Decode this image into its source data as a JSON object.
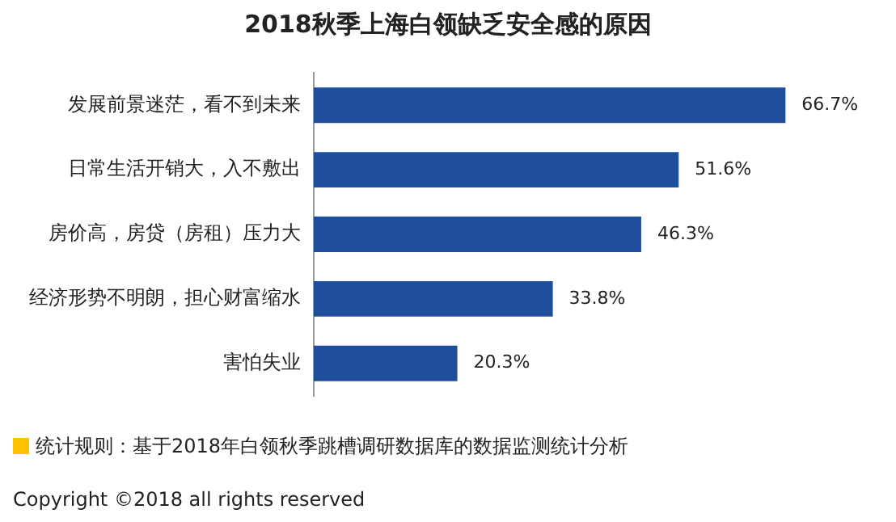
{
  "chart_data": {
    "type": "bar",
    "orientation": "horizontal",
    "title": "2018秋季上海白领缺乏安全感的原因",
    "categories": [
      "发展前景迷茫，看不到未来",
      "日常生活开销大，入不敷出",
      "房价高，房贷（房租）压力大",
      "经济形势不明朗，担心财富缩水",
      "害怕失业"
    ],
    "values": [
      66.7,
      51.6,
      46.3,
      33.8,
      20.3
    ],
    "value_labels": [
      "66.7%",
      "51.6%",
      "46.3%",
      "33.8%",
      "20.3%"
    ],
    "color": "#1f4e9c",
    "tick_labels": "y",
    "legend": false,
    "annotations": [
      "统计规则：基于2018年白领秋季跳槽调研数据库的数据监测统计分析",
      "Copyright ©2018 all rights reserved"
    ]
  }
}
